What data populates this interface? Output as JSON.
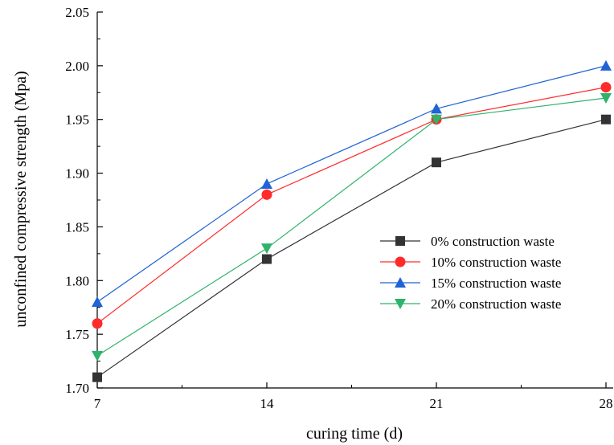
{
  "chart_data": {
    "type": "line",
    "title": "",
    "xlabel": "curing time (d)",
    "ylabel": "unconfined compressive strength (Mpa)",
    "x": [
      7,
      14,
      21,
      28
    ],
    "xticks": [
      "7",
      "14",
      "21",
      "28"
    ],
    "yticks": [
      "1.70",
      "1.75",
      "1.80",
      "1.85",
      "1.90",
      "1.95",
      "2.00",
      "2.05"
    ],
    "xlim": [
      7,
      28
    ],
    "ylim": [
      1.7,
      2.05
    ],
    "grid": false,
    "legend_position": "center-right",
    "series": [
      {
        "name": "0% construction waste",
        "values": [
          1.71,
          1.82,
          1.91,
          1.95
        ],
        "color": "#333333",
        "marker": "square"
      },
      {
        "name": "10% construction waste",
        "values": [
          1.76,
          1.88,
          1.95,
          1.98
        ],
        "color": "#ff2a2a",
        "marker": "circle"
      },
      {
        "name": "15% construction waste",
        "values": [
          1.78,
          1.89,
          1.96,
          2.0
        ],
        "color": "#1f63d6",
        "marker": "triangle-up"
      },
      {
        "name": "20% construction waste",
        "values": [
          1.73,
          1.83,
          1.95,
          1.97
        ],
        "color": "#2db36a",
        "marker": "triangle-down"
      }
    ]
  }
}
